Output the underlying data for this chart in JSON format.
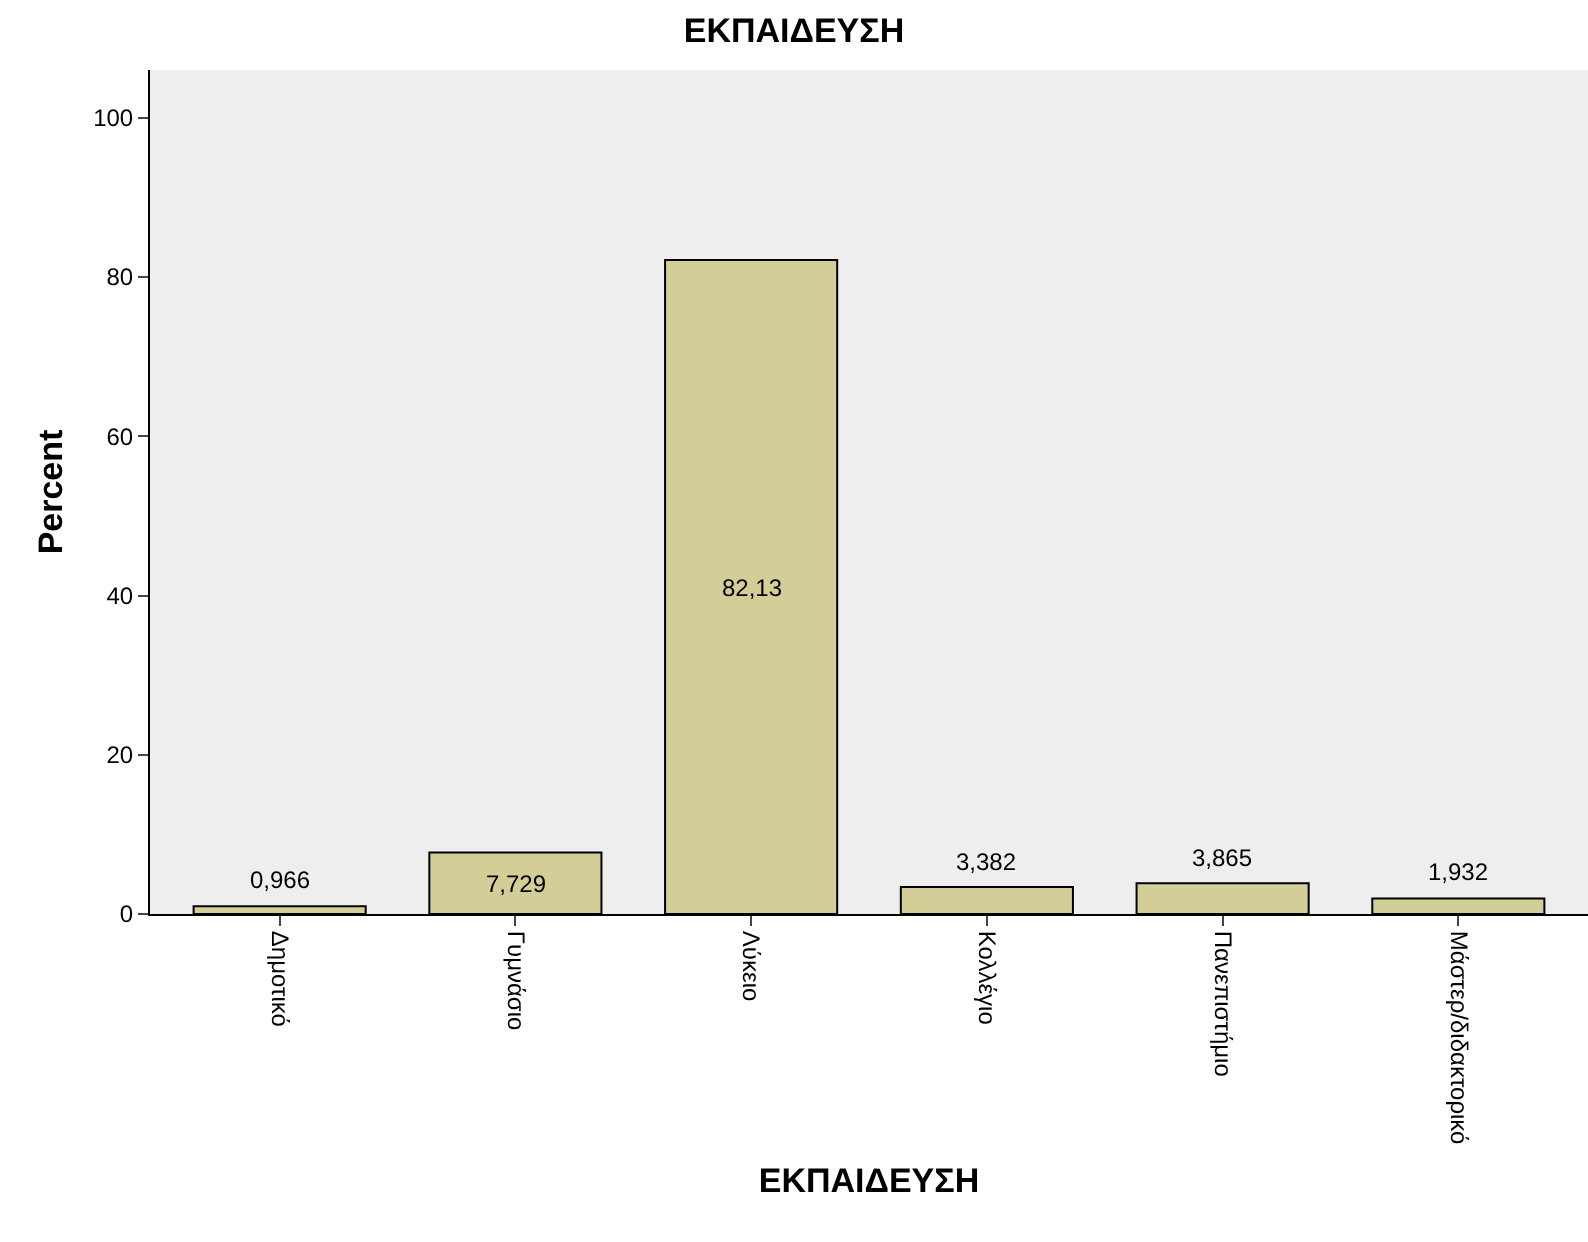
{
  "chart_data": {
    "type": "bar",
    "title": "ΕΚΠΑΙΔΕΥΣΗ",
    "xlabel": "ΕΚΠΑΙΔΕΥΣΗ",
    "ylabel": "Percent",
    "categories": [
      "Δημοτικό",
      "Γυμνάσιο",
      "Λύκειο",
      "Κολλέγιο",
      "Πανεπιστήμιο",
      "Μάστερ/διδακτορικό"
    ],
    "values": [
      0.966,
      7.729,
      82.13,
      3.382,
      3.865,
      1.932
    ],
    "value_labels": [
      "0,966",
      "7,729",
      "82,13",
      "3,382",
      "3,865",
      "1,932"
    ],
    "color": "#d3ce98",
    "ylim": [
      0,
      106
    ],
    "yticks": [
      0,
      20,
      40,
      60,
      80,
      100
    ],
    "grid": false,
    "legend": false
  }
}
